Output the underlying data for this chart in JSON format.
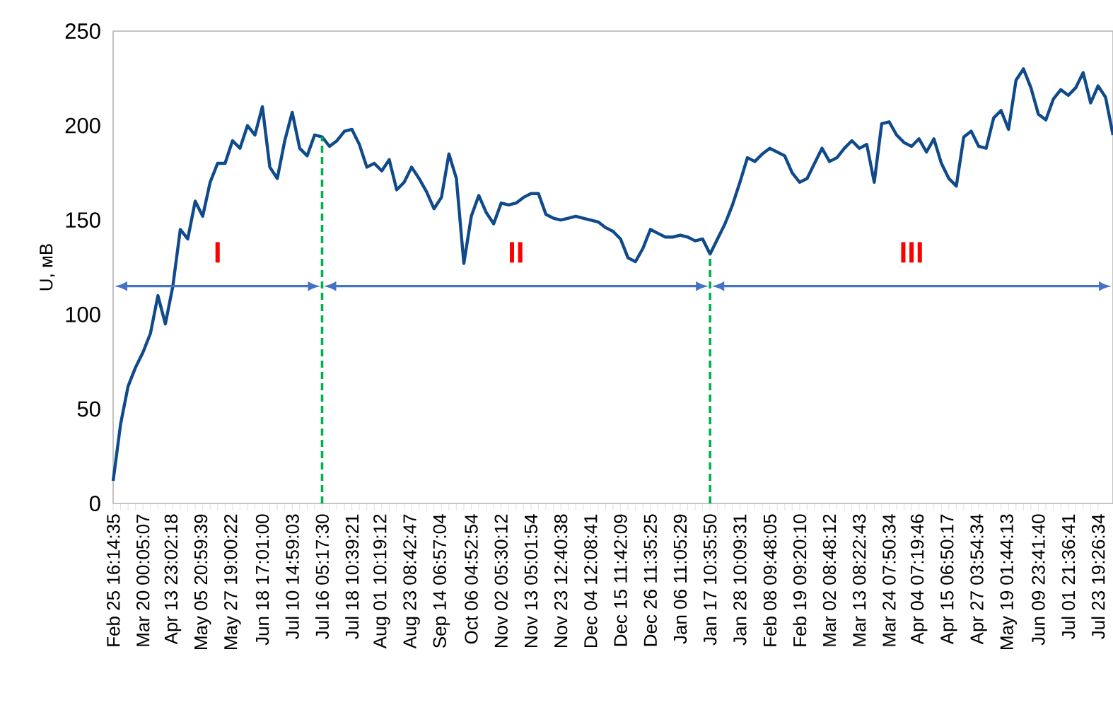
{
  "chart_data": {
    "type": "line",
    "ylabel": "U, мВ",
    "categories": [
      "Feb 25 16:14:35",
      null,
      null,
      null,
      "Mar 20 00:05:07",
      null,
      null,
      null,
      "Apr 13 23:02:18",
      null,
      null,
      null,
      "May 05 20:59:39",
      null,
      null,
      null,
      "May 27 19:00:22",
      null,
      null,
      null,
      "Jun 18 17:01:00",
      null,
      null,
      null,
      "Jul 10 14:59:03",
      null,
      null,
      null,
      "Jul 16 05:17:30",
      null,
      null,
      null,
      "Jul 18 10:39:21",
      null,
      null,
      null,
      "Aug 01 10:19:12",
      null,
      null,
      null,
      "Aug 23 08:42:47",
      null,
      null,
      null,
      "Sep 14 06:57:04",
      null,
      null,
      null,
      "Oct 06 04:52:54",
      null,
      null,
      null,
      "Nov 02 05:30:12",
      null,
      null,
      null,
      "Nov 13 05:01:54",
      null,
      null,
      null,
      "Nov 23 12:40:38",
      null,
      null,
      null,
      "Dec 04 12:08:41",
      null,
      null,
      null,
      "Dec 15 11:42:09",
      null,
      null,
      null,
      "Dec 26 11:35:25",
      null,
      null,
      null,
      "Jan 06 11:05:29",
      null,
      null,
      null,
      "Jan 17 10:35:50",
      null,
      null,
      null,
      "Jan 28 10:09:31",
      null,
      null,
      null,
      "Feb 08 09:48:05",
      null,
      null,
      null,
      "Feb 19 09:20:10",
      null,
      null,
      null,
      "Mar 02 08:48:12",
      null,
      null,
      null,
      "Mar 13 08:22:43",
      null,
      null,
      null,
      "Mar 24 07:50:34",
      null,
      null,
      null,
      "Apr 04 07:19:46",
      null,
      null,
      null,
      "Apr 15 06:50:17",
      null,
      null,
      null,
      "Apr 27 03:54:34",
      null,
      null,
      null,
      "May 19 01:44:13",
      null,
      null,
      null,
      "Jun 09 23:41:40",
      null,
      null,
      null,
      "Jul 01 21:36:41",
      null,
      null,
      null,
      "Jul 23 19:26:34",
      null,
      null
    ],
    "series": [
      {
        "color": "#0f4a8a",
        "values": [
          12,
          42,
          62,
          72,
          80,
          90,
          110,
          95,
          115,
          145,
          140,
          160,
          152,
          170,
          180,
          180,
          192,
          188,
          200,
          195,
          210,
          178,
          172,
          192,
          207,
          188,
          184,
          195,
          194,
          189,
          192,
          197,
          198,
          190,
          178,
          180,
          176,
          182,
          166,
          170,
          178,
          172,
          165,
          156,
          162,
          185,
          172,
          127,
          152,
          163,
          154,
          148,
          159,
          158,
          159,
          162,
          164,
          164,
          153,
          151,
          150,
          151,
          152,
          151,
          150,
          149,
          146,
          144,
          140,
          130,
          128,
          135,
          145,
          143,
          141,
          141,
          142,
          141,
          139,
          140,
          132,
          140,
          148,
          158,
          170,
          183,
          181,
          185,
          188,
          186,
          184,
          175,
          170,
          172,
          180,
          188,
          181,
          183,
          188,
          192,
          188,
          190,
          170,
          201,
          202,
          195,
          191,
          189,
          193,
          186,
          193,
          180,
          172,
          168,
          194,
          197,
          189,
          188,
          204,
          208,
          198,
          224,
          230,
          220,
          206,
          203,
          214,
          219,
          216,
          220,
          228,
          212,
          221,
          215,
          195
        ]
      }
    ],
    "ylim": [
      0,
      250
    ],
    "yticks": [
      0,
      50,
      100,
      150,
      200,
      250
    ],
    "marker": "none",
    "line_style": "solid",
    "ref_lines": [
      {
        "axis": "x",
        "value": "Jul 16 05:17:30",
        "color": "#00b050",
        "line_style": "dashed"
      },
      {
        "axis": "x",
        "value": "Jan 17 10:35:50",
        "color": "#00b050",
        "line_style": "dashed"
      }
    ],
    "annotations": [
      "I",
      "II",
      "III"
    ]
  }
}
